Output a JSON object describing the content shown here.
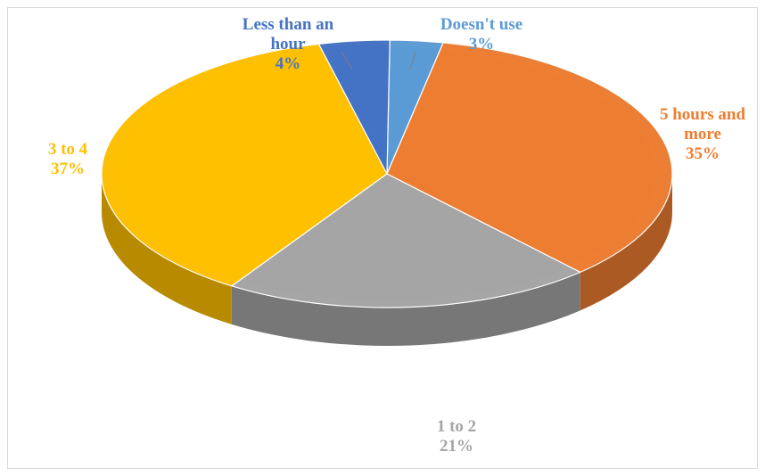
{
  "chart_data": {
    "type": "pie",
    "categories": [
      "Doesn't use",
      "5 hours and more",
      "1 to 2",
      "3 to 4",
      "Less than an hour"
    ],
    "values": [
      3,
      35,
      21,
      37,
      4
    ],
    "labels": [
      {
        "name_lines": [
          "Doesn't use"
        ],
        "pct": "3%"
      },
      {
        "name_lines": [
          "5 hours and",
          "more"
        ],
        "pct": "35%"
      },
      {
        "name_lines": [
          "1 to 2"
        ],
        "pct": "21%"
      },
      {
        "name_lines": [
          "3 to 4"
        ],
        "pct": "37%"
      },
      {
        "name_lines": [
          "Less than an",
          "hour"
        ],
        "pct": "4%"
      }
    ],
    "colors": [
      "#5b9bd5",
      "#ed7d31",
      "#a5a5a5",
      "#ffc000",
      "#4472c4"
    ],
    "label_colors": [
      "#5b9bd5",
      "#ed7d31",
      "#a5a5a5",
      "#ffc000",
      "#4472c4"
    ],
    "style": "3d-pie"
  }
}
